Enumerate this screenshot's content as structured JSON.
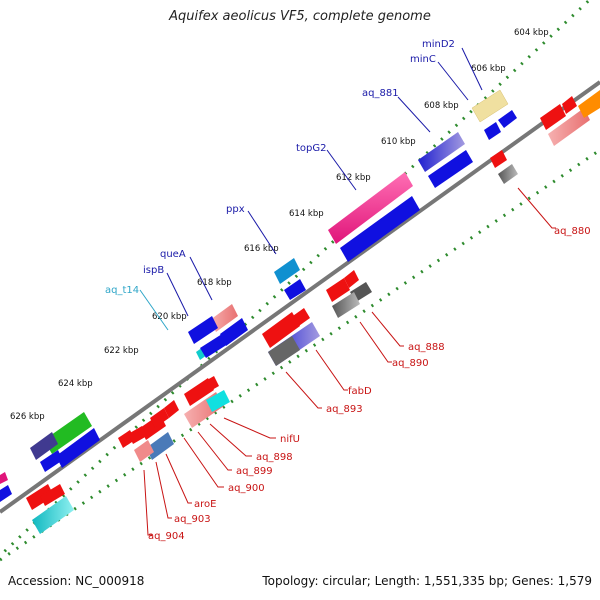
{
  "title": "Aquifex aeolicus VF5, complete genome",
  "footer": {
    "accession": "Accession: NC_000918",
    "topology": "Topology: circular; Length: 1,551,335 bp; Genes: 1,579"
  },
  "ticks": [
    {
      "label": "604 kbp"
    },
    {
      "label": "606 kbp"
    },
    {
      "label": "608 kbp"
    },
    {
      "label": "610 kbp"
    },
    {
      "label": "612 kbp"
    },
    {
      "label": "614 kbp"
    },
    {
      "label": "616 kbp"
    },
    {
      "label": "618 kbp"
    },
    {
      "label": "620 kbp"
    },
    {
      "label": "622 kbp"
    },
    {
      "label": "624 kbp"
    },
    {
      "label": "626 kbp"
    }
  ],
  "forward_labels": [
    {
      "name": "minD2"
    },
    {
      "name": "minC"
    },
    {
      "name": "aq_881"
    },
    {
      "name": "topG2"
    },
    {
      "name": "ppx"
    },
    {
      "name": "queA"
    },
    {
      "name": "ispB"
    },
    {
      "name": "aq_t14"
    }
  ],
  "reverse_labels": [
    {
      "name": "aq_880"
    },
    {
      "name": "aq_888"
    },
    {
      "name": "aq_890"
    },
    {
      "name": "fabD"
    },
    {
      "name": "aq_893"
    },
    {
      "name": "nifU"
    },
    {
      "name": "aq_898"
    },
    {
      "name": "aq_899"
    },
    {
      "name": "aq_900"
    },
    {
      "name": "aroE"
    },
    {
      "name": "aq_903"
    },
    {
      "name": "aq_904"
    }
  ],
  "colors": {
    "backbone": "#777777",
    "tick_dots": "#2e8b2e",
    "forward_label": "#1a1aa8",
    "reverse_label": "#c81414",
    "trna_label": "#2fa6c8",
    "blue_gene": "#1010e0",
    "red_gene": "#ee1111",
    "magenta_gene": "#e0157a",
    "pink_gene": "#f08a8a",
    "cyan_gene": "#10cccc",
    "green_gene": "#22bb22",
    "yellow_gene": "#f0e0a0",
    "gray_gene": "#888888",
    "purple_gene": "#7a6ad8",
    "orange_gene": "#ff8c00"
  }
}
